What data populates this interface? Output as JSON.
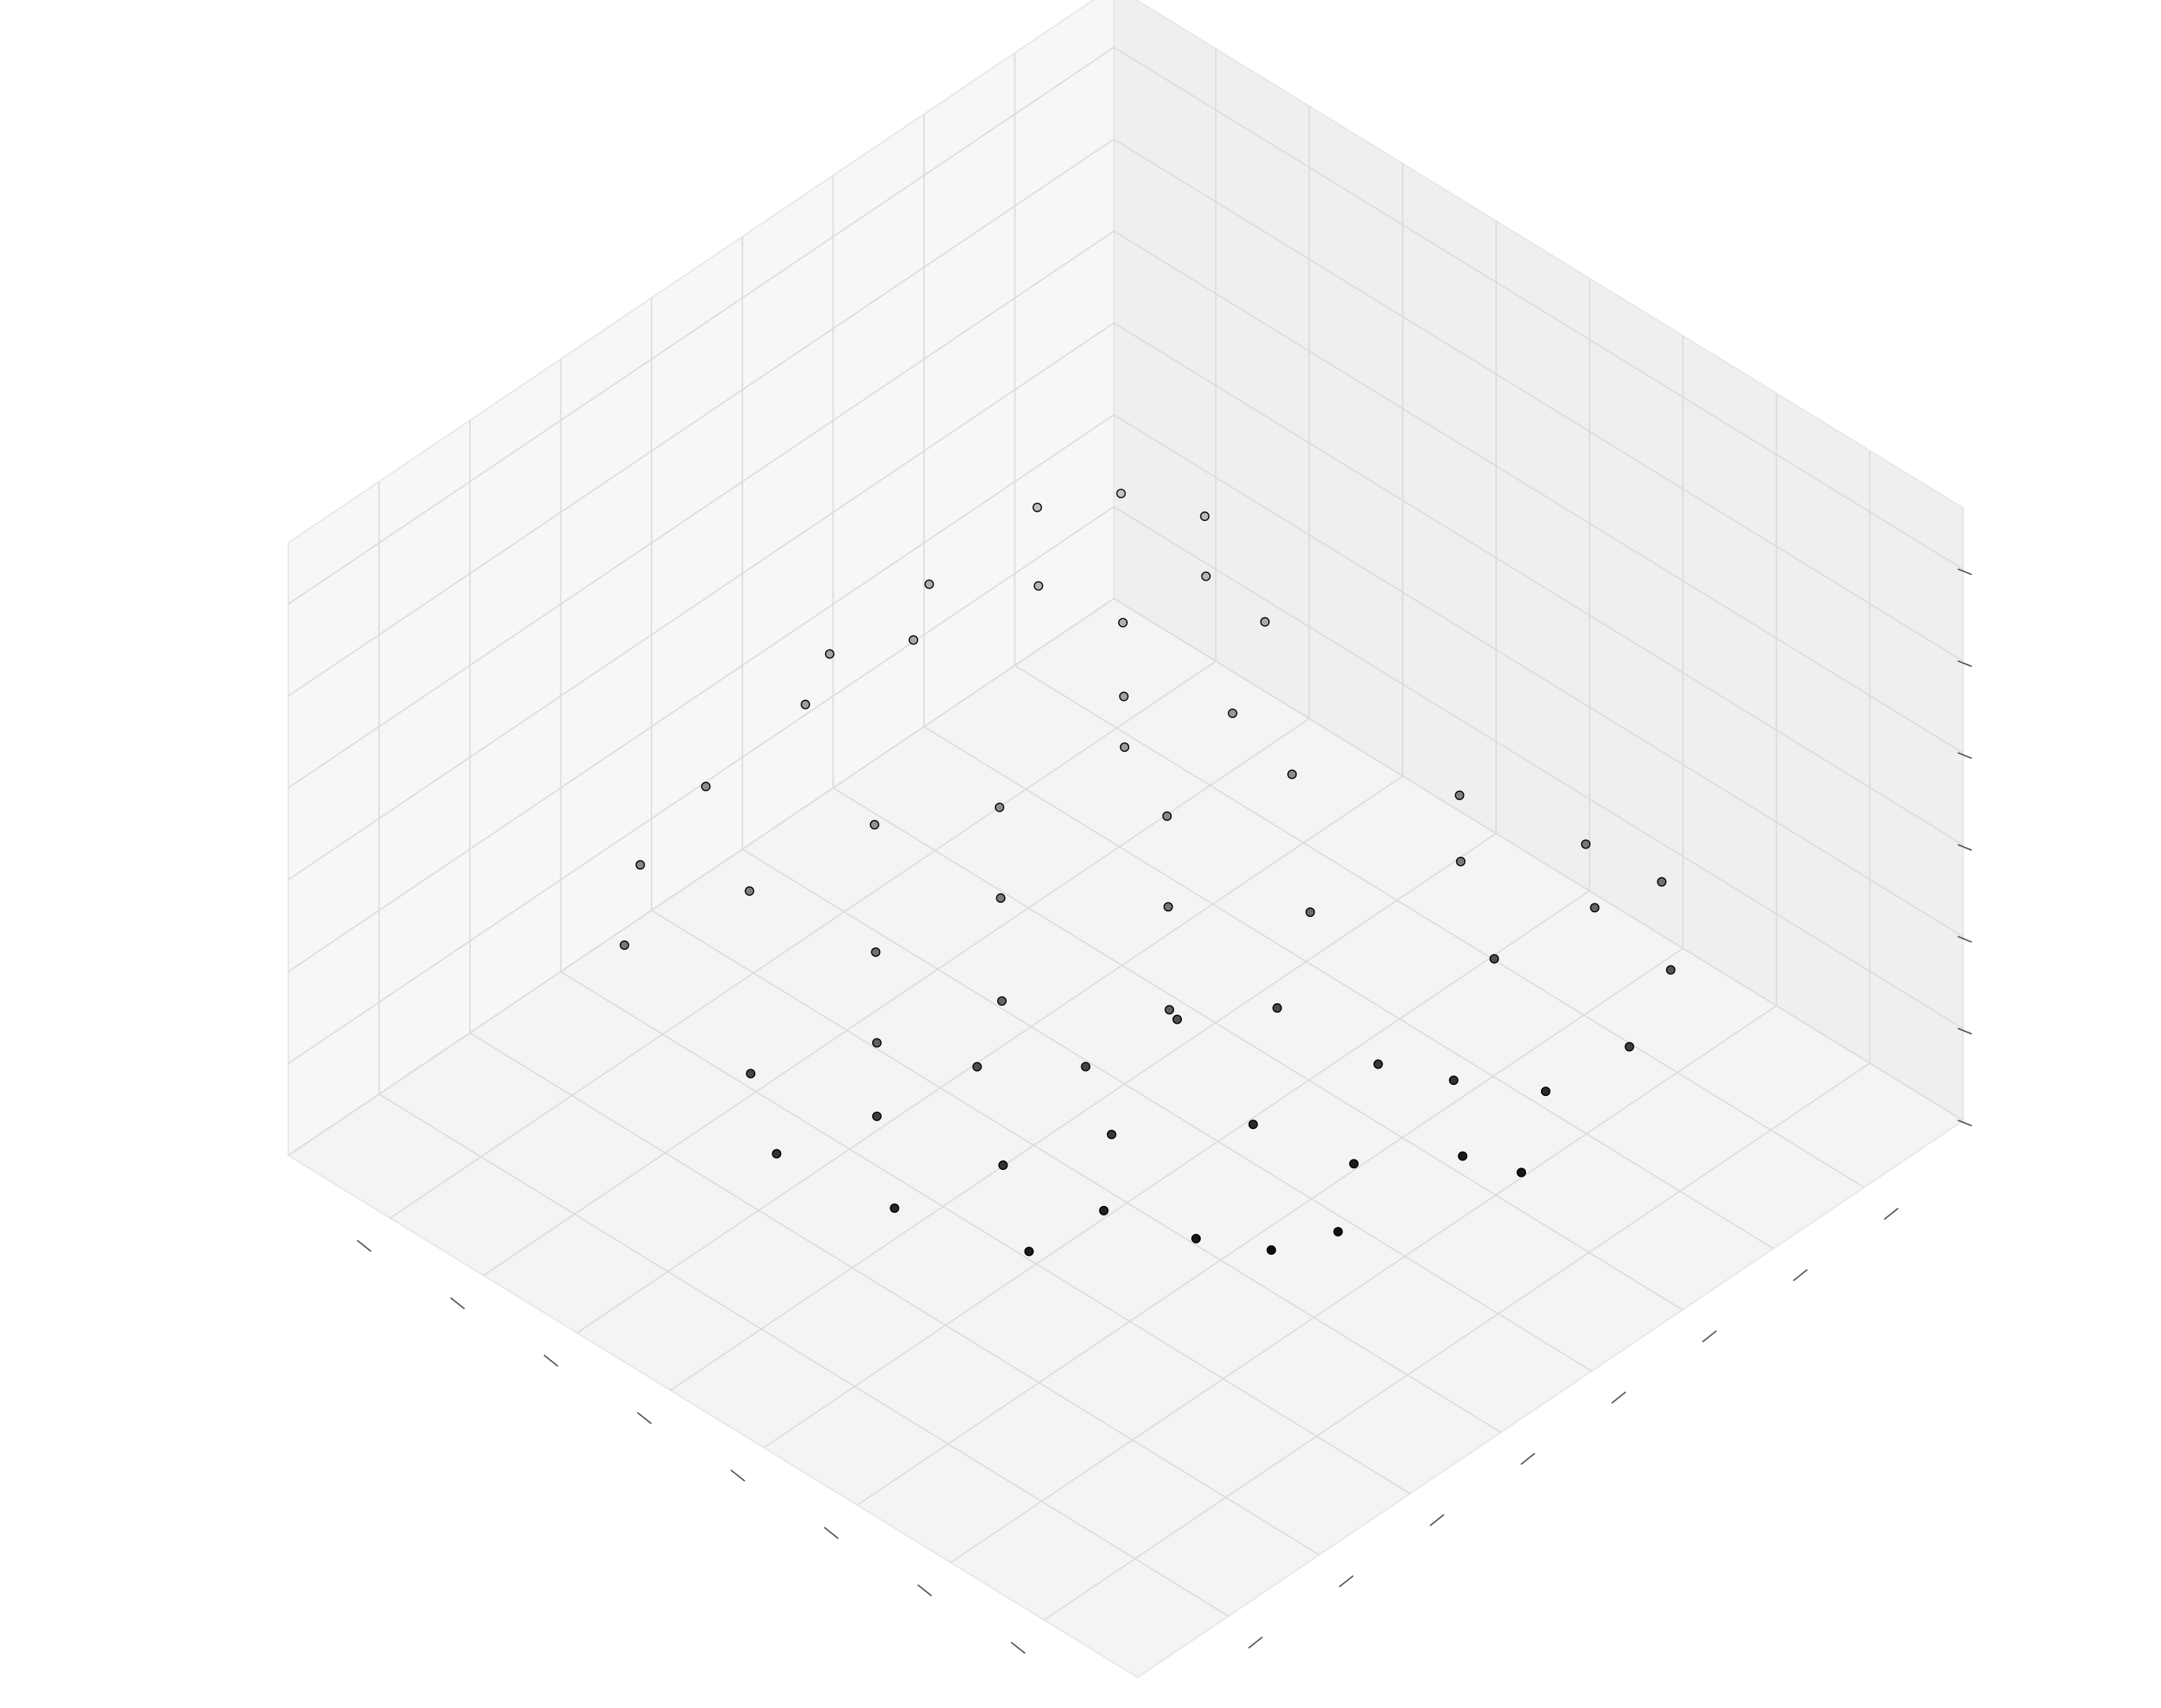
{
  "chart_data": {
    "type": "scatter3d",
    "x": [
      0.3,
      0.35,
      0.25,
      0.4,
      0.45,
      0.3,
      0.5,
      0.38,
      0.55,
      0.28,
      0.6,
      0.42,
      0.7,
      0.8,
      0.75,
      0.65,
      0.55,
      0.45,
      0.35,
      0.25,
      0.2,
      0.18,
      0.3,
      0.5,
      0.6,
      0.7,
      0.85,
      0.4,
      0.22,
      0.65,
      0.55,
      0.75,
      0.45,
      0.35,
      0.8,
      0.75,
      0.7,
      0.65,
      0.6,
      0.55,
      0.5,
      0.45,
      0.38,
      0.35,
      0.4,
      0.3,
      0.25,
      0.2,
      0.28,
      0.6,
      0.68,
      0.82,
      0.72,
      0.5,
      0.62,
      0.52,
      0.44,
      0.36,
      0.78
    ],
    "y": [
      0.3,
      0.25,
      0.35,
      0.3,
      0.22,
      0.4,
      0.25,
      0.38,
      0.2,
      0.45,
      0.22,
      0.42,
      0.2,
      0.22,
      0.3,
      0.35,
      0.4,
      0.5,
      0.55,
      0.65,
      0.75,
      0.82,
      0.7,
      0.55,
      0.45,
      0.4,
      0.25,
      0.62,
      0.78,
      0.5,
      0.6,
      0.45,
      0.45,
      0.48,
      0.35,
      0.45,
      0.55,
      0.62,
      0.68,
      0.72,
      0.65,
      0.72,
      0.78,
      0.82,
      0.7,
      0.8,
      0.85,
      0.85,
      0.72,
      0.55,
      0.5,
      0.4,
      0.6,
      0.75,
      0.6,
      0.58,
      0.62,
      0.75,
      0.5
    ],
    "z": [
      0.7,
      0.68,
      0.66,
      0.64,
      0.62,
      0.65,
      0.6,
      0.63,
      0.58,
      0.6,
      0.56,
      0.58,
      0.5,
      0.48,
      0.46,
      0.52,
      0.5,
      0.48,
      0.5,
      0.46,
      0.42,
      0.4,
      0.44,
      0.42,
      0.44,
      0.4,
      0.42,
      0.38,
      0.36,
      0.36,
      0.34,
      0.34,
      0.55,
      0.54,
      0.25,
      0.22,
      0.18,
      0.12,
      0.08,
      0.05,
      0.15,
      0.1,
      0.1,
      0.08,
      0.2,
      0.15,
      0.22,
      0.3,
      0.28,
      0.25,
      0.28,
      0.18,
      0.1,
      0.06,
      0.2,
      0.28,
      0.26,
      0.18,
      0.14
    ],
    "xlim": [
      0,
      1
    ],
    "ylim": [
      0,
      1
    ],
    "zlim": [
      0,
      1
    ],
    "xticks": [
      0.12,
      0.23,
      0.34,
      0.45,
      0.56,
      0.67,
      0.78,
      0.89
    ],
    "yticks": [
      0.12,
      0.23,
      0.34,
      0.45,
      0.56,
      0.67,
      0.78,
      0.89
    ],
    "zticks": [
      0,
      0.15,
      0.3,
      0.45,
      0.6,
      0.75,
      0.9
    ],
    "grid": true,
    "colormap": "gray",
    "edgecolor": "#000000"
  }
}
